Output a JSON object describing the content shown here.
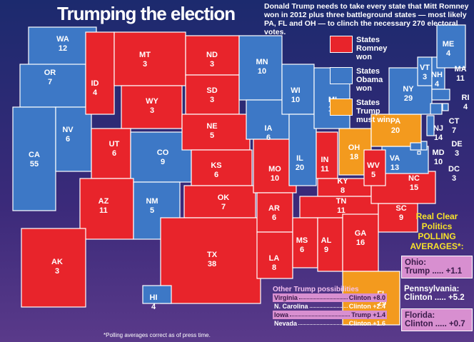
{
  "header": {
    "title": "Trumping the election",
    "description": "Donald Trump needs to take every state that Mitt Romney won in 2012 plus three battleground states — most likely PA, FL and OH — to clinch the necessary 270 electoral votes."
  },
  "legend": [
    {
      "label": "States Romney won",
      "color": "#e8242b"
    },
    {
      "label": "States Obama won",
      "color": "#3d78c6"
    },
    {
      "label": "States Trump must win",
      "color": "#f39a1e"
    }
  ],
  "states": [
    {
      "abbr": "WA",
      "votes": "12",
      "color": "#3d78c6"
    },
    {
      "abbr": "OR",
      "votes": "7",
      "color": "#3d78c6"
    },
    {
      "abbr": "CA",
      "votes": "55",
      "color": "#3d78c6"
    },
    {
      "abbr": "NV",
      "votes": "6",
      "color": "#3d78c6"
    },
    {
      "abbr": "ID",
      "votes": "4",
      "color": "#e8242b"
    },
    {
      "abbr": "MT",
      "votes": "3",
      "color": "#e8242b"
    },
    {
      "abbr": "WY",
      "votes": "3",
      "color": "#e8242b"
    },
    {
      "abbr": "UT",
      "votes": "6",
      "color": "#e8242b"
    },
    {
      "abbr": "CO",
      "votes": "9",
      "color": "#3d78c6"
    },
    {
      "abbr": "AZ",
      "votes": "11",
      "color": "#e8242b"
    },
    {
      "abbr": "NM",
      "votes": "5",
      "color": "#3d78c6"
    },
    {
      "abbr": "ND",
      "votes": "3",
      "color": "#e8242b"
    },
    {
      "abbr": "SD",
      "votes": "3",
      "color": "#e8242b"
    },
    {
      "abbr": "NE",
      "votes": "5",
      "color": "#e8242b"
    },
    {
      "abbr": "KS",
      "votes": "6",
      "color": "#e8242b"
    },
    {
      "abbr": "OK",
      "votes": "7",
      "color": "#e8242b"
    },
    {
      "abbr": "TX",
      "votes": "38",
      "color": "#e8242b"
    },
    {
      "abbr": "MN",
      "votes": "10",
      "color": "#3d78c6"
    },
    {
      "abbr": "IA",
      "votes": "6",
      "color": "#3d78c6"
    },
    {
      "abbr": "MO",
      "votes": "10",
      "color": "#e8242b"
    },
    {
      "abbr": "AR",
      "votes": "6",
      "color": "#e8242b"
    },
    {
      "abbr": "LA",
      "votes": "8",
      "color": "#e8242b"
    },
    {
      "abbr": "WI",
      "votes": "10",
      "color": "#3d78c6"
    },
    {
      "abbr": "IL",
      "votes": "20",
      "color": "#3d78c6"
    },
    {
      "abbr": "MI",
      "votes": "16",
      "color": "#3d78c6"
    },
    {
      "abbr": "IN",
      "votes": "11",
      "color": "#e8242b"
    },
    {
      "abbr": "OH",
      "votes": "18",
      "color": "#f39a1e"
    },
    {
      "abbr": "KY",
      "votes": "8",
      "color": "#e8242b"
    },
    {
      "abbr": "TN",
      "votes": "11",
      "color": "#e8242b"
    },
    {
      "abbr": "MS",
      "votes": "6",
      "color": "#e8242b"
    },
    {
      "abbr": "AL",
      "votes": "9",
      "color": "#e8242b"
    },
    {
      "abbr": "GA",
      "votes": "16",
      "color": "#e8242b"
    },
    {
      "abbr": "FL",
      "votes": "29",
      "color": "#f39a1e"
    },
    {
      "abbr": "SC",
      "votes": "9",
      "color": "#e8242b"
    },
    {
      "abbr": "NC",
      "votes": "15",
      "color": "#e8242b"
    },
    {
      "abbr": "VA",
      "votes": "13",
      "color": "#3d78c6"
    },
    {
      "abbr": "WV",
      "votes": "5",
      "color": "#e8242b"
    },
    {
      "abbr": "PA",
      "votes": "20",
      "color": "#f39a1e"
    },
    {
      "abbr": "NY",
      "votes": "29",
      "color": "#3d78c6"
    },
    {
      "abbr": "VT",
      "votes": "3",
      "color": "#3d78c6"
    },
    {
      "abbr": "NH",
      "votes": "4",
      "color": "#3d78c6"
    },
    {
      "abbr": "ME",
      "votes": "4",
      "color": "#3d78c6"
    },
    {
      "abbr": "MA",
      "votes": "11",
      "color": "#3d78c6"
    },
    {
      "abbr": "RI",
      "votes": "4",
      "color": "#3d78c6"
    },
    {
      "abbr": "CT",
      "votes": "7",
      "color": "#3d78c6"
    },
    {
      "abbr": "NJ",
      "votes": "14",
      "color": "#3d78c6"
    },
    {
      "abbr": "DE",
      "votes": "3",
      "color": "#3d78c6"
    },
    {
      "abbr": "MD",
      "votes": "10",
      "color": "#3d78c6"
    },
    {
      "abbr": "DC",
      "votes": "3",
      "color": "#3d78c6"
    },
    {
      "abbr": "AK",
      "votes": "3",
      "color": "#e8242b"
    },
    {
      "abbr": "HI",
      "votes": "4",
      "color": "#3d78c6"
    }
  ],
  "polling": {
    "source": "Real Clear Politics",
    "heading": "POLLING AVERAGES*:",
    "rows": [
      {
        "state": "Ohio:",
        "result": "Trump ..... +1.1"
      },
      {
        "state": "Pennsylvania:",
        "result": "Clinton ..... +5.2"
      },
      {
        "state": "Florida:",
        "result": "Clinton ..... +0.7"
      }
    ]
  },
  "possibilities": {
    "heading": "Other Trump possibilities",
    "rows": [
      {
        "state": "Virginia",
        "result": "Clinton +8.0"
      },
      {
        "state": "N. Carolina",
        "result": "Clinton +2.4"
      },
      {
        "state": "Iowa",
        "result": "Trump +1.4"
      },
      {
        "state": "Nevada",
        "result": "Clinton +1.6"
      }
    ]
  },
  "footnote": "*Polling averages correct as of press time."
}
